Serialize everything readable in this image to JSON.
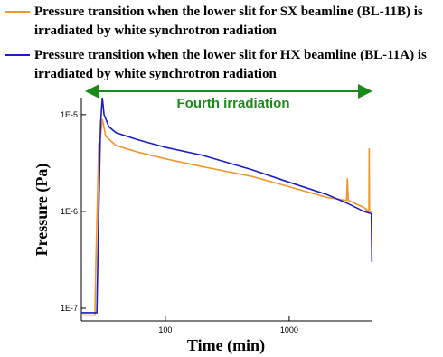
{
  "chart_data": {
    "type": "line",
    "xlabel": "Time (min)",
    "ylabel": "Pressure (Pa)",
    "annotation": "Fourth irradiation",
    "xscale": "log",
    "yscale": "log",
    "xlim": [
      21,
      4700
    ],
    "ylim": [
      7.4e-08,
      1.5e-05
    ],
    "xticks": [
      100,
      1000
    ],
    "yticks": [
      {
        "value": 1e-07,
        "label": "1E-7"
      },
      {
        "value": 1e-06,
        "label": "1E-6"
      },
      {
        "value": 1e-05,
        "label": "1E-5"
      }
    ],
    "series": [
      {
        "name": "Pressure transition when the lower slit for SX beamline (BL-11B) is irradiated by white synchrotron radiation",
        "color": "#f0962c",
        "x": [
          21,
          27,
          27.5,
          29,
          30,
          31,
          33,
          40,
          60,
          100,
          200,
          500,
          1000,
          2000,
          2900,
          2950,
          3000,
          4000,
          4400,
          4420,
          4450,
          4650
        ],
        "values": [
          8.5e-08,
          8.5e-08,
          3e-07,
          5e-06,
          6e-06,
          9e-06,
          6e-06,
          4.8e-06,
          4.1e-06,
          3.5e-06,
          2.9e-06,
          2.3e-06,
          1.8e-06,
          1.4e-06,
          1.3e-06,
          2.2e-06,
          1.3e-06,
          1.1e-06,
          1e-06,
          4.5e-06,
          1e-06,
          1e-06
        ]
      },
      {
        "name": "Pressure transition when the lower slit for HX beamline (BL-11A) is irradiated by white synchrotron radiation",
        "color": "#1c1cc8",
        "x": [
          21,
          28,
          28.5,
          30,
          31,
          32,
          35,
          40,
          60,
          100,
          200,
          500,
          1000,
          2000,
          3000,
          4000,
          4600,
          4650
        ],
        "values": [
          9e-08,
          9e-08,
          3e-07,
          8e-06,
          1.5e-05,
          1e-05,
          7.5e-06,
          6.5e-06,
          5.5e-06,
          4.6e-06,
          3.8e-06,
          2.7e-06,
          2e-06,
          1.5e-06,
          1.2e-06,
          1e-06,
          9.5e-07,
          3e-07
        ]
      }
    ]
  }
}
